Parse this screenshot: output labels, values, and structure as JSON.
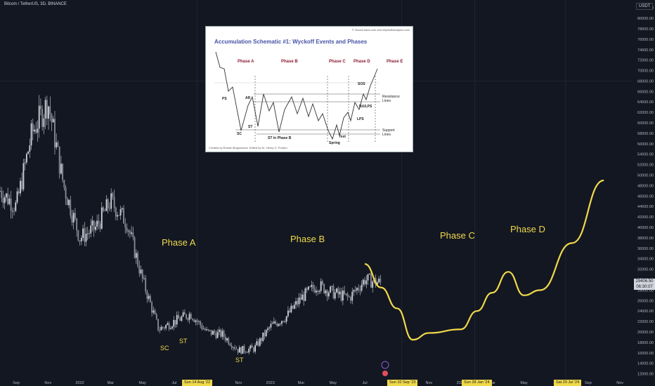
{
  "header": {
    "title": "Bitcoin / TetherUS, 3D, BINANCE"
  },
  "currency_label": "USDT",
  "last_price": {
    "value": "29406.50",
    "countdown": "06:30:07"
  },
  "inset": {
    "copyright": "© StockCharts.com and WyckoffAnalytics.com",
    "title": "Accumulation Schematic #1: Wyckoff Events and Phases",
    "credit": "Created by Roman Bogomazov. Edited by Dr. Henry O. Pruden",
    "phases": [
      "Phase A",
      "Phase B",
      "Phase C",
      "Phase D",
      "Phase E"
    ],
    "events": {
      "ps": "PS",
      "sc": "SC",
      "ar": "AR",
      "st": "ST",
      "st_b": "ST in Phase B",
      "spring": "Spring",
      "test": "Test",
      "sos": "SOS",
      "bu_lps": "BU/LPS",
      "lps": "LPS",
      "resistance": "Resistance Lines",
      "support": "Support Lines"
    }
  },
  "annotations": {
    "phase_a": "Phase A",
    "phase_b": "Phase B",
    "phase_c": "Phase C",
    "phase_d": "Phase D",
    "sc": "SC",
    "st1": "ST",
    "st2": "ST"
  },
  "date_boxes": [
    "Sun 14 Aug '22",
    "Sun 10 Sep '23",
    "Sun 28 Jan '24",
    "Sat 20 Jul '24"
  ],
  "colors": {
    "background": "#131722",
    "candles": "#d1d4dc",
    "projection": "#f0d94a",
    "grid": "#2a2e39"
  },
  "chart_data": {
    "type": "line",
    "x_tick_labels": [
      "Sep",
      "Nov",
      "2022",
      "Mar",
      "May",
      "Jul",
      "Sep",
      "Nov",
      "2023",
      "Mar",
      "May",
      "Jul",
      "Nov",
      "2024",
      "Mar",
      "May",
      "Jul",
      "Sep",
      "Nov"
    ],
    "y_tick_labels": [
      82000,
      80000,
      78000,
      76000,
      74000,
      72000,
      70000,
      68000,
      66000,
      64000,
      62000,
      60000,
      58000,
      56000,
      54000,
      52000,
      50000,
      48000,
      46000,
      44000,
      42000,
      40000,
      38000,
      36000,
      34000,
      32000,
      30000,
      28000,
      26000,
      24000,
      22000,
      20000,
      18000,
      16000,
      14000,
      12000
    ],
    "ylim": [
      11000,
      83500
    ],
    "price_series": {
      "x": [
        "2021-08",
        "2021-09",
        "2021-10",
        "2021-11",
        "2021-12",
        "2022-01",
        "2022-02",
        "2022-03",
        "2022-04",
        "2022-05",
        "2022-06",
        "2022-07",
        "2022-08",
        "2022-09",
        "2022-10",
        "2022-11",
        "2022-12",
        "2023-01",
        "2023-02",
        "2023-03",
        "2023-04",
        "2023-05",
        "2023-06",
        "2023-07",
        "2023-08"
      ],
      "y": [
        47000,
        44000,
        58000,
        64000,
        48000,
        38000,
        40000,
        45000,
        41000,
        30000,
        20500,
        22000,
        23500,
        20000,
        19500,
        16500,
        16800,
        21000,
        23000,
        26500,
        29000,
        27500,
        26500,
        30000,
        29400
      ]
    },
    "projection_series": {
      "x": [
        "2023-07",
        "2023-08",
        "2023-09",
        "2023-10",
        "2023-11",
        "2024-01",
        "2024-02",
        "2024-03",
        "2024-04",
        "2024-05",
        "2024-06",
        "2024-08",
        "2024-10"
      ],
      "y": [
        33000,
        28500,
        24500,
        18500,
        19800,
        20500,
        24000,
        27500,
        31500,
        27000,
        28000,
        37000,
        49000
      ]
    }
  }
}
